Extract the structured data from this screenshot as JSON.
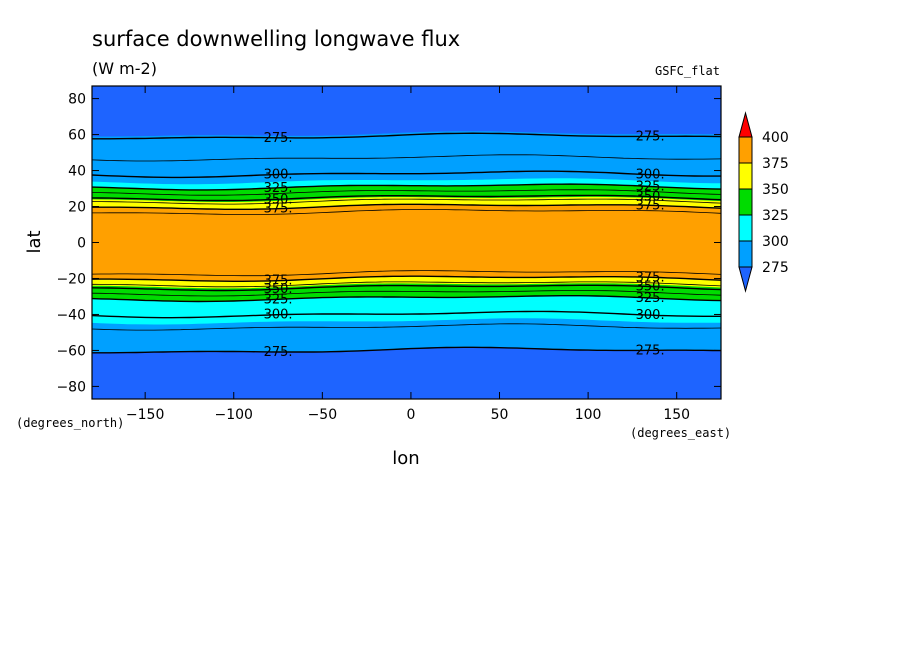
{
  "chart_data": {
    "type": "contour",
    "title": "surface downwelling longwave flux",
    "units": "(W m-2)",
    "dataset": "GSFC_flat",
    "xlabel": "lon",
    "ylabel": "lat",
    "x_units": "(degrees_east)",
    "y_units": "(degrees_north)",
    "xlim": [
      -180,
      175
    ],
    "ylim": [
      -87,
      87
    ],
    "x_ticks": [
      "-150",
      "-100",
      "-50",
      "0",
      "50",
      "100",
      "150"
    ],
    "y_ticks": [
      "80",
      "60",
      "40",
      "20",
      "0",
      "-20",
      "-40",
      "-60",
      "-80"
    ],
    "colorbar": {
      "levels": [
        "400",
        "375",
        "350",
        "325",
        "300",
        "275"
      ],
      "colors": [
        "#1e64ff",
        "#00a0ff",
        "#00ffff",
        "#00dc00",
        "#ffff00",
        "#ffa000",
        "#ff0000"
      ]
    },
    "bands": [
      {
        "lat_from": 60,
        "lat_to": 87,
        "color": "#1e64ff"
      },
      {
        "lat_from": 47,
        "lat_to": 60,
        "color": "#00a0ff"
      },
      {
        "lat_from": 34,
        "lat_to": 47,
        "color": "#00a0ff"
      },
      {
        "lat_from": 31,
        "lat_to": 34,
        "color": "#00ffff"
      },
      {
        "lat_from": 27,
        "lat_to": 31,
        "color": "#00dc00"
      },
      {
        "lat_from": 24,
        "lat_to": 27,
        "color": "#00dc00"
      },
      {
        "lat_from": 20,
        "lat_to": 24,
        "color": "#ffff00"
      },
      {
        "lat_from": 17,
        "lat_to": 20,
        "color": "#ffa000"
      },
      {
        "lat_from": -17,
        "lat_to": 17,
        "color": "#ffa000"
      },
      {
        "lat_from": -20,
        "lat_to": -17,
        "color": "#ffa000"
      },
      {
        "lat_from": -24,
        "lat_to": -20,
        "color": "#ffff00"
      },
      {
        "lat_from": -27,
        "lat_to": -24,
        "color": "#00dc00"
      },
      {
        "lat_from": -31,
        "lat_to": -27,
        "color": "#00dc00"
      },
      {
        "lat_from": -34,
        "lat_to": -31,
        "color": "#00ffff"
      },
      {
        "lat_from": -44,
        "lat_to": -34,
        "color": "#00ffff"
      },
      {
        "lat_from": -60,
        "lat_to": -44,
        "color": "#00a0ff"
      },
      {
        "lat_from": -87,
        "lat_to": -60,
        "color": "#1e64ff"
      }
    ],
    "contours": [
      {
        "level": "275",
        "lat": 59,
        "label": "275."
      },
      {
        "level": "285",
        "lat": 47
      },
      {
        "level": "300",
        "lat": 38,
        "label": "300."
      },
      {
        "level": "325",
        "lat": 31,
        "label": "325."
      },
      {
        "level": "335",
        "lat": 28
      },
      {
        "level": "350",
        "lat": 25,
        "label": "350."
      },
      {
        "level": "360",
        "lat": 23
      },
      {
        "level": "375",
        "lat": 20,
        "label": "375."
      },
      {
        "level": "385",
        "lat": 17
      },
      {
        "level": "385",
        "lat": -17
      },
      {
        "level": "375",
        "lat": -20,
        "label": "375."
      },
      {
        "level": "360",
        "lat": -23
      },
      {
        "level": "350",
        "lat": -25,
        "label": "350."
      },
      {
        "level": "335",
        "lat": -28
      },
      {
        "level": "325",
        "lat": -31,
        "label": "325."
      },
      {
        "level": "300",
        "lat": -40,
        "label": "300."
      },
      {
        "level": "285",
        "lat": -47
      },
      {
        "level": "275",
        "lat": -60,
        "label": "275."
      }
    ]
  }
}
